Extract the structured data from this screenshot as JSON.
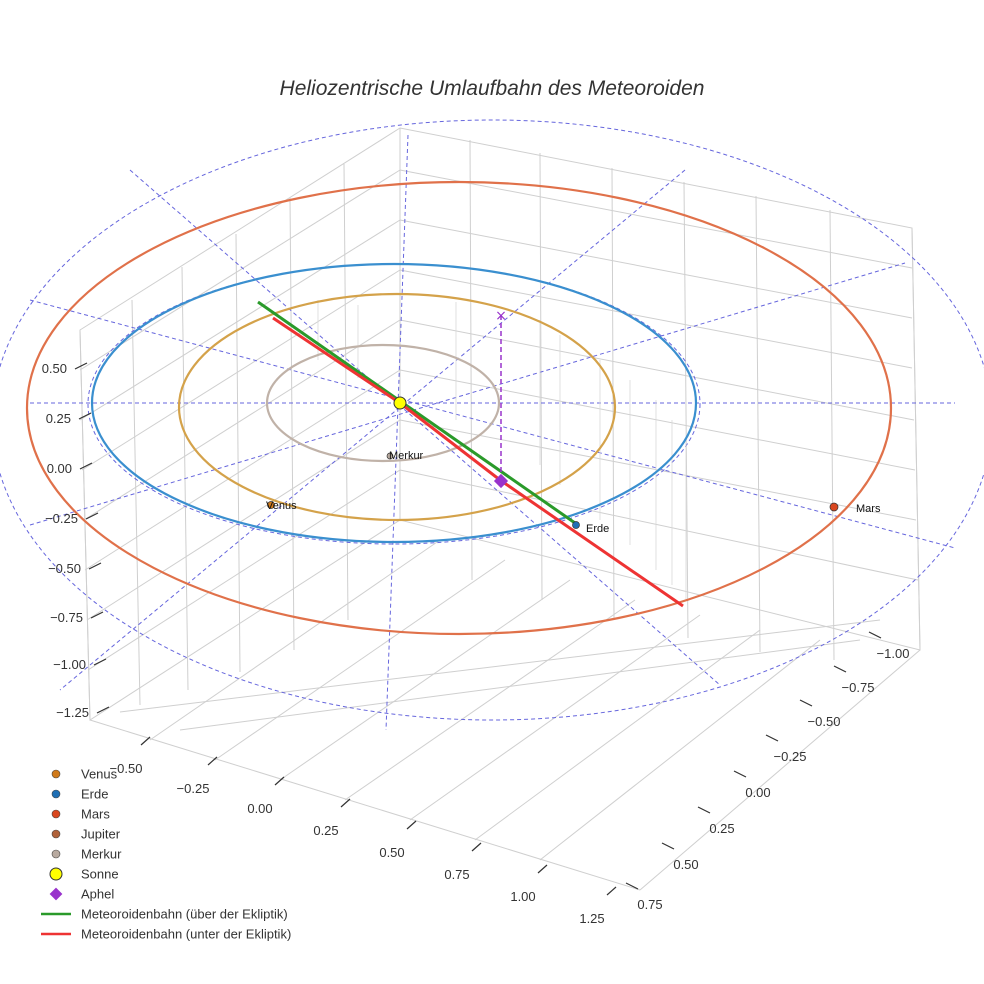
{
  "chart_data": {
    "type": "scatter3d",
    "title": "Heliozentrische Umlaufbahn des Meteoroiden",
    "z_ticks": [
      "0.50",
      "0.25",
      "0.00",
      "−0.25",
      "−0.50",
      "−0.75",
      "−1.00",
      "−1.25"
    ],
    "x_ticks": [
      "−0.50",
      "−0.25",
      "0.00",
      "0.25",
      "0.50",
      "0.75",
      "1.00",
      "1.25"
    ],
    "y_ticks": [
      "−1.00",
      "−0.75",
      "−0.50",
      "−0.25",
      "0.00",
      "0.25",
      "0.50",
      "0.75"
    ],
    "planet_labels": {
      "merkur": "Merkur",
      "venus": "Venus",
      "erde": "Erde",
      "mars": "Mars"
    },
    "orbits": [
      {
        "name": "Merkur",
        "color": "#c0b2a8"
      },
      {
        "name": "Venus",
        "color": "#d4a24a"
      },
      {
        "name": "Erde",
        "color": "#3a8fcf"
      },
      {
        "name": "Mars",
        "color": "#e0714a"
      }
    ],
    "meteoroid_above": {
      "name": "Meteoroidenbahn (über der Ekliptik)",
      "color": "#2a9a2a"
    },
    "meteoroid_below": {
      "name": "Meteoroidenbahn (unter der Ekliptik)",
      "color": "#ee3333"
    },
    "legend": [
      {
        "label": "Venus",
        "color": "#d07a1a",
        "symbol": "circle"
      },
      {
        "label": "Erde",
        "color": "#1f6fb4",
        "symbol": "circle"
      },
      {
        "label": "Mars",
        "color": "#d9471f",
        "symbol": "circle"
      },
      {
        "label": "Jupiter",
        "color": "#b0623a",
        "symbol": "circle"
      },
      {
        "label": "Merkur",
        "color": "#b8aaa0",
        "symbol": "circle"
      },
      {
        "label": "Sonne",
        "color": "#ffff00",
        "symbol": "circle-large"
      },
      {
        "label": "Aphel",
        "color": "#9933cc",
        "symbol": "diamond"
      },
      {
        "label": "Meteoroidenbahn (über der Ekliptik)",
        "color": "#2a9a2a",
        "symbol": "line"
      },
      {
        "label": "Meteoroidenbahn (unter der Ekliptik)",
        "color": "#ee3333",
        "symbol": "line"
      }
    ]
  }
}
